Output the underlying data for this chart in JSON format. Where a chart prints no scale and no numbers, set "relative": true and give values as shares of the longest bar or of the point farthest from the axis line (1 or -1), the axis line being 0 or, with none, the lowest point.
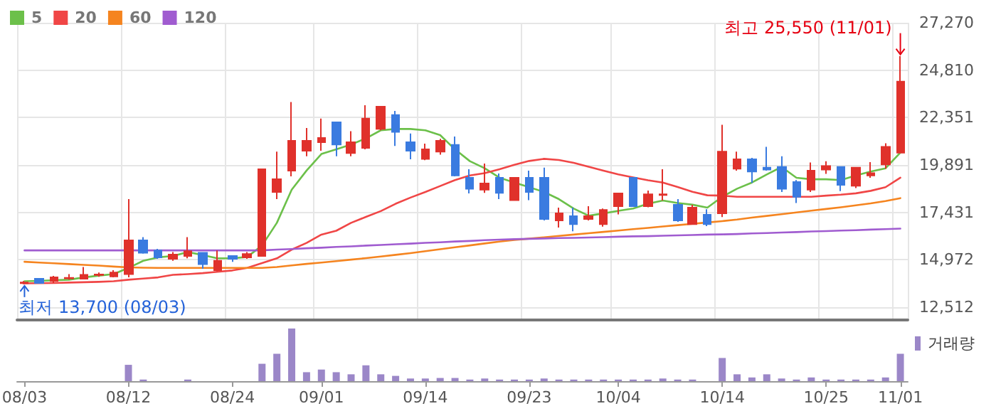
{
  "chart_data": [
    {
      "type": "candlestick",
      "categories": [
        "08/03",
        null,
        null,
        null,
        null,
        null,
        null,
        "08/12",
        null,
        null,
        null,
        null,
        null,
        null,
        "08/24",
        null,
        null,
        null,
        null,
        null,
        "09/01",
        null,
        null,
        null,
        null,
        null,
        null,
        "09/14",
        null,
        null,
        null,
        null,
        null,
        null,
        "09/23",
        null,
        null,
        null,
        null,
        null,
        "10/04",
        null,
        null,
        null,
        null,
        null,
        null,
        "10/14",
        null,
        null,
        null,
        null,
        null,
        null,
        "10/25",
        null,
        null,
        null,
        null,
        "11/01"
      ],
      "series": [
        {
          "ohlc": [
            [
              13760,
              13870,
              13700,
              13800
            ],
            [
              13990,
              13990,
              13770,
              13770
            ],
            [
              13870,
              14140,
              13770,
              14060
            ],
            [
              14010,
              14230,
              13940,
              14040
            ],
            [
              13990,
              14600,
              13990,
              14190
            ],
            [
              14180,
              14310,
              14090,
              14210
            ],
            [
              14110,
              14430,
              14060,
              14310
            ],
            [
              14230,
              18120,
              14060,
              15980
            ],
            [
              15980,
              16150,
              15290,
              15340
            ],
            [
              15460,
              15540,
              15020,
              15100
            ],
            [
              15020,
              15370,
              14920,
              15240
            ],
            [
              15170,
              16150,
              15050,
              15420
            ],
            [
              15340,
              15340,
              14510,
              14750
            ],
            [
              14430,
              15460,
              14380,
              14920
            ],
            [
              15170,
              15170,
              14870,
              15020
            ],
            [
              15100,
              15370,
              15020,
              15270
            ],
            [
              15170,
              19670,
              15170,
              19670
            ],
            [
              18490,
              20580,
              18120,
              19150
            ],
            [
              19600,
              23160,
              19300,
              21150
            ],
            [
              20630,
              21810,
              20340,
              21150
            ],
            [
              21070,
              22300,
              20630,
              21290
            ],
            [
              22110,
              22110,
              20340,
              20950
            ],
            [
              20510,
              21640,
              20340,
              21070
            ],
            [
              20780,
              22990,
              20700,
              22300
            ],
            [
              21760,
              22920,
              21690,
              22920
            ],
            [
              22480,
              22700,
              20880,
              21610
            ],
            [
              21070,
              21520,
              20190,
              20630
            ],
            [
              20210,
              21000,
              20140,
              20700
            ],
            [
              20580,
              21250,
              20430,
              21150
            ],
            [
              20930,
              21370,
              19300,
              19350
            ],
            [
              19230,
              19670,
              18420,
              18660
            ],
            [
              18610,
              19970,
              18440,
              18930
            ],
            [
              19230,
              19450,
              18120,
              18440
            ],
            [
              18070,
              19230,
              18070,
              19230
            ],
            [
              19230,
              19600,
              18070,
              18490
            ],
            [
              19230,
              19750,
              17010,
              17090
            ],
            [
              17010,
              17680,
              16650,
              17380
            ],
            [
              17240,
              17680,
              16450,
              16820
            ],
            [
              17090,
              17750,
              17010,
              17240
            ],
            [
              16820,
              17630,
              16690,
              17560
            ],
            [
              17750,
              18420,
              17330,
              18420
            ],
            [
              19230,
              19230,
              17750,
              17750
            ],
            [
              17750,
              18560,
              17700,
              18370
            ],
            [
              18330,
              19670,
              18050,
              18370
            ],
            [
              17830,
              18120,
              16940,
              17010
            ],
            [
              16820,
              17830,
              16820,
              17680
            ],
            [
              17310,
              17600,
              16720,
              16820
            ],
            [
              17380,
              21980,
              17190,
              20580
            ],
            [
              19700,
              20580,
              19600,
              20190
            ],
            [
              20190,
              20260,
              18960,
              19550
            ],
            [
              19750,
              20830,
              19600,
              19650
            ],
            [
              19790,
              20340,
              18490,
              18660
            ],
            [
              19010,
              19110,
              17920,
              18240
            ],
            [
              18610,
              20020,
              18490,
              19600
            ],
            [
              19650,
              20090,
              19430,
              19840
            ],
            [
              19790,
              19790,
              18540,
              18860
            ],
            [
              18810,
              19750,
              18690,
              19750
            ],
            [
              19350,
              20040,
              19230,
              19470
            ],
            [
              19920,
              21020,
              19700,
              20830
            ],
            [
              20530,
              25550,
              20530,
              24220
            ]
          ],
          "colors": [
            "#e0312b",
            "#3a7be0",
            "#e0312b",
            "#e0312b",
            "#e0312b",
            "#e0312b",
            "#e0312b",
            "#e0312b",
            "#3a7be0",
            "#3a7be0",
            "#e0312b",
            "#e0312b",
            "#3a7be0",
            "#e0312b",
            "#3a7be0",
            "#e0312b",
            "#e0312b",
            "#e0312b",
            "#e0312b",
            "#e0312b",
            "#e0312b",
            "#3a7be0",
            "#e0312b",
            "#e0312b",
            "#e0312b",
            "#3a7be0",
            "#3a7be0",
            "#e0312b",
            "#e0312b",
            "#3a7be0",
            "#3a7be0",
            "#e0312b",
            "#3a7be0",
            "#e0312b",
            "#3a7be0",
            "#3a7be0",
            "#e0312b",
            "#3a7be0",
            "#e0312b",
            "#e0312b",
            "#e0312b",
            "#3a7be0",
            "#e0312b",
            "#e0312b",
            "#3a7be0",
            "#e0312b",
            "#3a7be0",
            "#e0312b",
            "#e0312b",
            "#3a7be0",
            "#3a7be0",
            "#3a7be0",
            "#3a7be0",
            "#e0312b",
            "#e0312b",
            "#3a7be0",
            "#e0312b",
            "#e0312b",
            "#e0312b",
            "#e0312b"
          ]
        },
        {
          "type": "line",
          "name": "5",
          "color": "#6cc04a",
          "values": [
            13860,
            13880,
            13910,
            13940,
            14060,
            14150,
            14230,
            14550,
            14920,
            15100,
            15170,
            15370,
            15220,
            15050,
            15050,
            15120,
            15710,
            16890,
            18610,
            19600,
            20460,
            20700,
            20950,
            21270,
            21690,
            21760,
            21760,
            21690,
            21440,
            20700,
            20090,
            19720,
            19230,
            18980,
            18740,
            18490,
            18120,
            17630,
            17260,
            17380,
            17510,
            17630,
            17880,
            18050,
            17920,
            17830,
            17680,
            18240,
            18660,
            18980,
            19400,
            19790,
            19230,
            19150,
            19150,
            19110,
            19350,
            19550,
            19720,
            20530
          ]
        },
        {
          "type": "line",
          "name": "20",
          "color": "#f04646",
          "values": [
            13750,
            13760,
            13770,
            13790,
            13810,
            13830,
            13860,
            13940,
            14000,
            14060,
            14190,
            14230,
            14280,
            14350,
            14420,
            14550,
            14800,
            15050,
            15500,
            15850,
            16280,
            16480,
            16890,
            17200,
            17500,
            17880,
            18200,
            18490,
            18800,
            19110,
            19350,
            19470,
            19670,
            19900,
            20100,
            20210,
            20150,
            20000,
            19800,
            19600,
            19400,
            19250,
            19100,
            18980,
            18750,
            18500,
            18320,
            18300,
            18240,
            18240,
            18240,
            18240,
            18240,
            18240,
            18300,
            18350,
            18420,
            18550,
            18740,
            19230
          ]
        },
        {
          "type": "line",
          "name": "60",
          "color": "#f5841f",
          "values": [
            14870,
            14830,
            14790,
            14750,
            14710,
            14670,
            14620,
            14580,
            14560,
            14550,
            14550,
            14550,
            14550,
            14550,
            14550,
            14550,
            14550,
            14600,
            14680,
            14760,
            14830,
            14900,
            14980,
            15060,
            15140,
            15230,
            15320,
            15420,
            15520,
            15620,
            15720,
            15820,
            15920,
            16000,
            16070,
            16140,
            16210,
            16280,
            16350,
            16420,
            16490,
            16560,
            16630,
            16700,
            16770,
            16840,
            16910,
            16980,
            17060,
            17160,
            17250,
            17340,
            17430,
            17520,
            17610,
            17700,
            17800,
            17900,
            18020,
            18170
          ]
        },
        {
          "type": "line",
          "name": "120",
          "color": "#a05cd0",
          "values": [
            15460,
            15460,
            15460,
            15460,
            15460,
            15460,
            15460,
            15460,
            15460,
            15460,
            15460,
            15460,
            15460,
            15460,
            15460,
            15460,
            15460,
            15500,
            15530,
            15570,
            15600,
            15640,
            15670,
            15710,
            15740,
            15780,
            15810,
            15850,
            15880,
            15920,
            15950,
            15990,
            16020,
            16040,
            16060,
            16080,
            16100,
            16110,
            16130,
            16150,
            16170,
            16190,
            16200,
            16220,
            16240,
            16260,
            16280,
            16290,
            16310,
            16340,
            16360,
            16390,
            16410,
            16440,
            16460,
            16490,
            16510,
            16540,
            16560,
            16590
          ]
        }
      ],
      "ylim": [
        11850,
        27270
      ],
      "yticks": [
        {
          "value": 12512,
          "label": "12,512"
        },
        {
          "value": 14972,
          "label": "14,972"
        },
        {
          "value": 17431,
          "label": "17,431"
        },
        {
          "value": 19891,
          "label": "19,891"
        },
        {
          "value": 22351,
          "label": "22,351"
        },
        {
          "value": 24810,
          "label": "24,810"
        },
        {
          "value": 27270,
          "label": "27,270"
        }
      ],
      "grid": true,
      "legend": "top left",
      "marker": "none",
      "tick_labels": "y",
      "annotations": [
        {
          "text": "최고 25,550 (11/01)",
          "x": "11/01",
          "y": 25550
        },
        {
          "text": "최저 13,700 (08/03)",
          "x": "08/03",
          "y": 13700
        }
      ]
    },
    {
      "type": "bar",
      "categories": [
        "08/03",
        null,
        null,
        null,
        null,
        null,
        null,
        "08/12",
        null,
        null,
        null,
        null,
        null,
        null,
        "08/24",
        null,
        null,
        null,
        null,
        null,
        "09/01",
        null,
        null,
        null,
        null,
        null,
        null,
        "09/14",
        null,
        null,
        null,
        null,
        null,
        null,
        "09/23",
        null,
        null,
        null,
        null,
        null,
        "10/04",
        null,
        null,
        null,
        null,
        null,
        null,
        "10/14",
        null,
        null,
        null,
        null,
        null,
        null,
        "10/25",
        null,
        null,
        null,
        null,
        "11/01"
      ],
      "series": [
        {
          "name": "거래량",
          "color": "#9b87c8",
          "values": [
            0,
            0,
            0,
            0,
            0,
            0,
            0,
            0.31,
            0.03,
            0,
            0,
            0.03,
            0,
            0,
            0,
            0,
            0.33,
            0.52,
            1,
            0.17,
            0.22,
            0.17,
            0.13,
            0.3,
            0.13,
            0.1,
            0.05,
            0.05,
            0.06,
            0.06,
            0.03,
            0.05,
            0.03,
            0.03,
            0.03,
            0.05,
            0.03,
            0.03,
            0.03,
            0.03,
            0.03,
            0.03,
            0.03,
            0.05,
            0.03,
            0.03,
            0,
            0.44,
            0.13,
            0.07,
            0.13,
            0.05,
            0.03,
            0.07,
            0.03,
            0.03,
            0.03,
            0.03,
            0.07,
            0.52
          ]
        }
      ],
      "relative": true,
      "legend": "top right",
      "tick_labels": "x",
      "grid": false
    }
  ]
}
